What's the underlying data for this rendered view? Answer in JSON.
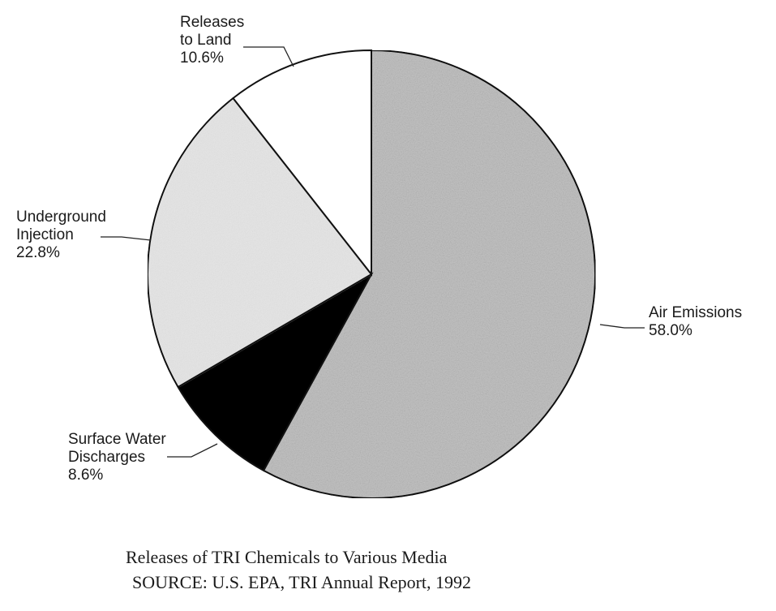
{
  "chart_data": {
    "type": "pie",
    "slices": [
      {
        "name": "Air Emissions",
        "label_lines": [
          "Air Emissions"
        ],
        "value": 58.0,
        "value_label": "58.0%",
        "color": "#c4c4c4",
        "pattern": "stipple-dark"
      },
      {
        "name": "Surface Water Discharges",
        "label_lines": [
          "Surface Water",
          "Discharges"
        ],
        "value": 8.6,
        "value_label": "8.6%",
        "color": "#000000",
        "pattern": "solid"
      },
      {
        "name": "Underground Injection",
        "label_lines": [
          "Underground",
          "Injection"
        ],
        "value": 22.8,
        "value_label": "22.8%",
        "color": "#e6e6e6",
        "pattern": "stipple-light"
      },
      {
        "name": "Releases to Land",
        "label_lines": [
          "Releases",
          "to Land"
        ],
        "value": 10.6,
        "value_label": "10.6%",
        "color": "#ffffff",
        "pattern": "solid"
      }
    ],
    "start_angle_deg": 0,
    "direction": "clockwise",
    "legend": "none"
  },
  "caption": {
    "title": "Releases of TRI Chemicals to Various Media",
    "source": "SOURCE:  U.S. EPA, TRI Annual Report, 1992"
  }
}
